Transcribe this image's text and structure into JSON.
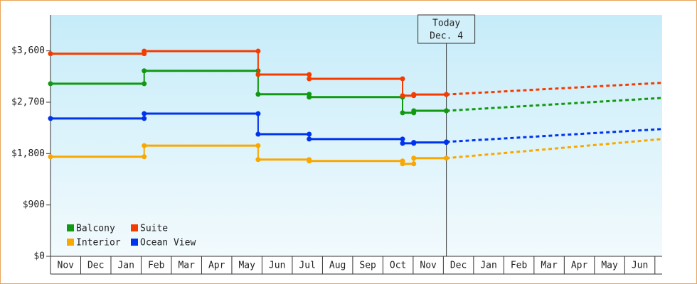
{
  "chart_data": {
    "type": "step-line",
    "categories": [
      "Nov",
      "Dec",
      "Jan",
      "Feb",
      "Mar",
      "Apr",
      "May",
      "Jun",
      "Jul",
      "Aug",
      "Sep",
      "Oct",
      "Nov",
      "Dec",
      "Jan",
      "Feb",
      "Mar",
      "Apr",
      "May",
      "Jun"
    ],
    "xlim": [
      0,
      20.24
    ],
    "ylim": [
      0,
      4230
    ],
    "yticks": [
      {
        "value": 0,
        "label": "$0"
      },
      {
        "value": 900,
        "label": "$900"
      },
      {
        "value": 1800,
        "label": "$1,800"
      },
      {
        "value": 2700,
        "label": "$2,700"
      },
      {
        "value": 3600,
        "label": "$3,600"
      }
    ],
    "today": {
      "x": 13.1,
      "label": [
        "Today",
        "Dec. 4"
      ]
    },
    "forecast_x": [
      13.1,
      20.24
    ],
    "series": [
      {
        "name": "Balcony",
        "color": "#119911",
        "x": [
          0,
          3.1,
          6.87,
          8.56,
          11.65,
          12.02,
          13.1
        ],
        "values": [
          3025,
          3250,
          2840,
          2790,
          2515,
          2550,
          2550
        ],
        "forecast": [
          2550,
          2775
        ]
      },
      {
        "name": "Suite",
        "color": "#f53c00",
        "x": [
          0,
          3.1,
          6.87,
          8.56,
          11.65,
          12.02,
          13.1
        ],
        "values": [
          3550,
          3595,
          3185,
          3110,
          2815,
          2835,
          2835
        ],
        "forecast": [
          2835,
          3040
        ]
      },
      {
        "name": "Interior",
        "color": "#f9a800",
        "x": [
          0,
          3.1,
          6.87,
          8.56,
          11.65,
          12.02,
          13.1
        ],
        "values": [
          1745,
          1940,
          1695,
          1670,
          1620,
          1720,
          1720
        ],
        "forecast": [
          1720,
          2055
        ]
      },
      {
        "name": "Ocean View",
        "color": "#0033ee",
        "x": [
          0,
          3.1,
          6.87,
          8.56,
          11.65,
          12.02,
          13.1
        ],
        "values": [
          2415,
          2500,
          2140,
          2055,
          1980,
          1995,
          2005
        ],
        "forecast": [
          2005,
          2230
        ]
      }
    ]
  }
}
